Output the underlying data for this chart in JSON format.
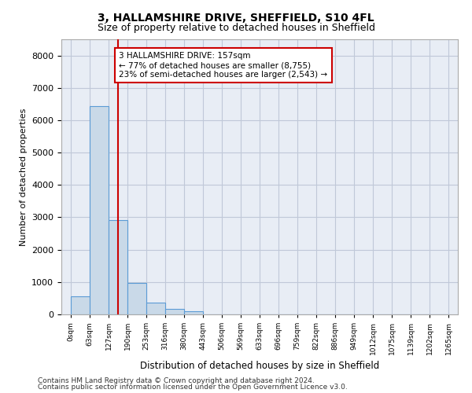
{
  "title_line1": "3, HALLAMSHIRE DRIVE, SHEFFIELD, S10 4FL",
  "title_line2": "Size of property relative to detached houses in Sheffield",
  "xlabel": "Distribution of detached houses by size in Sheffield",
  "ylabel": "Number of detached properties",
  "bar_values": [
    560,
    6430,
    2920,
    980,
    360,
    175,
    100,
    0,
    0,
    0,
    0,
    0,
    0,
    0,
    0,
    0,
    0,
    0,
    0,
    0
  ],
  "x_labels": [
    "0sqm",
    "63sqm",
    "127sqm",
    "190sqm",
    "253sqm",
    "316sqm",
    "380sqm",
    "443sqm",
    "506sqm",
    "569sqm",
    "633sqm",
    "696sqm",
    "759sqm",
    "822sqm",
    "886sqm",
    "949sqm",
    "1012sqm",
    "1075sqm",
    "1139sqm",
    "1202sqm",
    "1265sqm"
  ],
  "bar_color": "#c9d9e8",
  "bar_edge_color": "#5b9bd5",
  "bar_edge_width": 0.8,
  "vline_x": 157,
  "vline_color": "#cc0000",
  "annotation_text": "3 HALLAMSHIRE DRIVE: 157sqm\n← 77% of detached houses are smaller (8,755)\n23% of semi-detached houses are larger (2,543) →",
  "annotation_box_color": "#cc0000",
  "ylim": [
    0,
    8500
  ],
  "yticks": [
    0,
    1000,
    2000,
    3000,
    4000,
    5000,
    6000,
    7000,
    8000
  ],
  "grid_color": "#c0c8d8",
  "background_color": "#e8edf5",
  "footer_line1": "Contains HM Land Registry data © Crown copyright and database right 2024.",
  "footer_line2": "Contains public sector information licensed under the Open Government Licence v3.0.",
  "bin_width": 63,
  "n_bins": 20
}
